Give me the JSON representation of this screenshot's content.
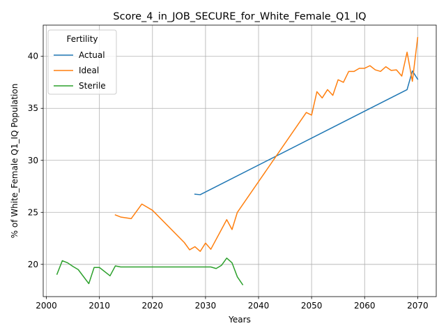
{
  "chart_data": {
    "type": "line",
    "title": "Score_4_in_JOB_SECURE_for_White_Female_Q1_IQ",
    "xlabel": "Years",
    "ylabel": "% of White_Female Q1_IQ Population",
    "xlim": [
      1999.4,
      2073.5
    ],
    "ylim": [
      16.9,
      43.0
    ],
    "xticks": [
      2000,
      2010,
      2020,
      2030,
      2040,
      2050,
      2060,
      2070
    ],
    "yticks": [
      20,
      25,
      30,
      35,
      40
    ],
    "grid": true,
    "legend": {
      "title": "Fertility",
      "placement": "top-left"
    },
    "series": [
      {
        "name": "Actual",
        "color": "#1f77b4",
        "points": [
          [
            2028,
            26.75
          ],
          [
            2029,
            26.7
          ],
          [
            2068,
            36.8
          ],
          [
            2069,
            38.6
          ],
          [
            2070,
            37.8
          ]
        ]
      },
      {
        "name": "Ideal",
        "color": "#ff7f0e",
        "points": [
          [
            2013,
            24.75
          ],
          [
            2014,
            24.55
          ],
          [
            2016,
            24.4
          ],
          [
            2018,
            25.8
          ],
          [
            2020,
            25.2
          ],
          [
            2026,
            22.1
          ],
          [
            2027,
            21.4
          ],
          [
            2028,
            21.7
          ],
          [
            2029,
            21.25
          ],
          [
            2030,
            22.05
          ],
          [
            2031,
            21.45
          ],
          [
            2034,
            24.3
          ],
          [
            2035,
            23.35
          ],
          [
            2036,
            25.0
          ],
          [
            2049,
            34.6
          ],
          [
            2050,
            34.35
          ],
          [
            2051,
            36.6
          ],
          [
            2052,
            36.0
          ],
          [
            2053,
            36.8
          ],
          [
            2054,
            36.25
          ],
          [
            2055,
            37.75
          ],
          [
            2056,
            37.5
          ],
          [
            2057,
            38.55
          ],
          [
            2058,
            38.55
          ],
          [
            2059,
            38.85
          ],
          [
            2060,
            38.85
          ],
          [
            2061,
            39.1
          ],
          [
            2062,
            38.7
          ],
          [
            2063,
            38.55
          ],
          [
            2064,
            39.0
          ],
          [
            2065,
            38.65
          ],
          [
            2066,
            38.7
          ],
          [
            2067,
            38.1
          ],
          [
            2068,
            40.4
          ],
          [
            2069,
            37.6
          ],
          [
            2070,
            41.8
          ]
        ]
      },
      {
        "name": "Sterile",
        "color": "#2ca02c",
        "points": [
          [
            2002,
            19.05
          ],
          [
            2003,
            20.35
          ],
          [
            2004,
            20.15
          ],
          [
            2005,
            19.8
          ],
          [
            2006,
            19.5
          ],
          [
            2008,
            18.15
          ],
          [
            2009,
            19.7
          ],
          [
            2010,
            19.7
          ],
          [
            2012,
            18.9
          ],
          [
            2013,
            19.85
          ],
          [
            2014,
            19.75
          ],
          [
            2030,
            19.75
          ],
          [
            2031,
            19.75
          ],
          [
            2032,
            19.6
          ],
          [
            2033,
            19.9
          ],
          [
            2034,
            20.6
          ],
          [
            2035,
            20.15
          ],
          [
            2036,
            18.8
          ],
          [
            2037,
            18.05
          ]
        ]
      }
    ]
  }
}
